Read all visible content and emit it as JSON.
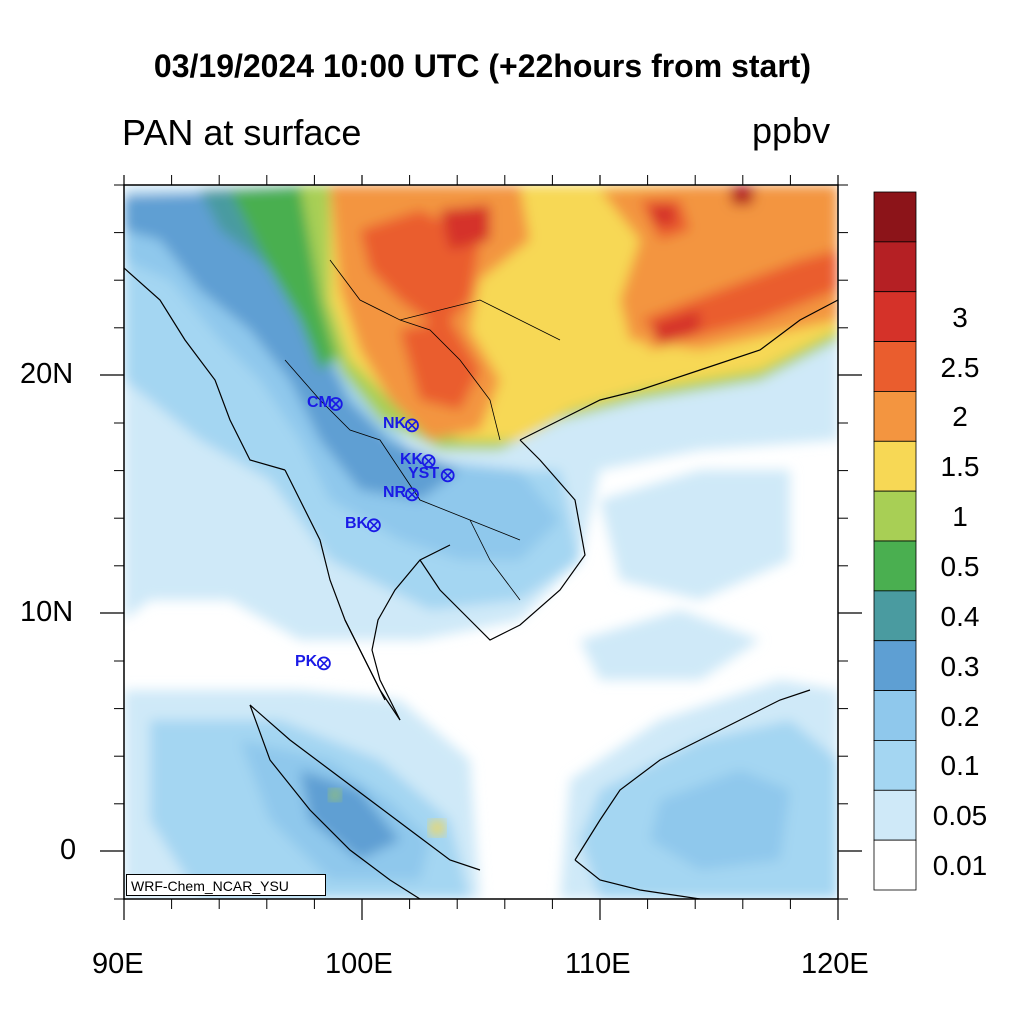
{
  "title": "03/19/2024 10:00 UTC (+22hours from start)",
  "subtitle": "PAN at surface",
  "units": "ppbv",
  "credit": "WRF-Chem_NCAR_YSU",
  "axes": {
    "x_ticks": [
      "90E",
      "100E",
      "110E",
      "120E"
    ],
    "y_ticks": [
      "20N",
      "10N",
      "0"
    ],
    "lon_range": [
      90,
      120
    ],
    "lat_range": [
      -2,
      28
    ]
  },
  "colorbar": {
    "levels": [
      "0.01",
      "0.05",
      "0.1",
      "0.2",
      "0.3",
      "0.4",
      "0.5",
      "1",
      "1.5",
      "2",
      "2.5",
      "3"
    ],
    "colors": [
      "#ffffff",
      "#cfe9f8",
      "#a4d6f2",
      "#8fc8ec",
      "#5e9fd3",
      "#4a9ba0",
      "#4aaf50",
      "#a8cf55",
      "#f7d855",
      "#f39540",
      "#ea5d2e",
      "#d53229",
      "#b52024",
      "#8c1419"
    ]
  },
  "stations": [
    {
      "name": "CM",
      "lon": 98.9,
      "lat": 18.8
    },
    {
      "name": "NK",
      "lon": 102.1,
      "lat": 17.9
    },
    {
      "name": "KK",
      "lon": 102.8,
      "lat": 16.4
    },
    {
      "name": "YST",
      "lon": 103.6,
      "lat": 15.8
    },
    {
      "name": "NR",
      "lon": 102.1,
      "lat": 15.0
    },
    {
      "name": "BK",
      "lon": 100.5,
      "lat": 13.7
    },
    {
      "name": "PK",
      "lon": 98.4,
      "lat": 7.9
    }
  ]
}
